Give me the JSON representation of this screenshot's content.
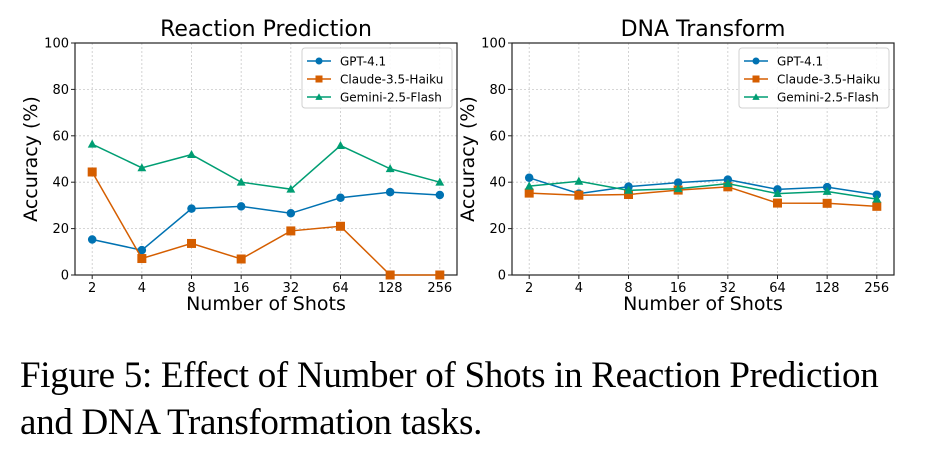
{
  "chart_data": [
    {
      "type": "line",
      "title": "Reaction Prediction",
      "xlabel": "Number of Shots",
      "ylabel": "Accuracy (%)",
      "categories": [
        "2",
        "4",
        "8",
        "16",
        "32",
        "64",
        "128",
        "256"
      ],
      "ylim": [
        0,
        100
      ],
      "yticks": [
        0,
        20,
        40,
        60,
        80,
        100
      ],
      "grid": true,
      "legend": "top-right",
      "series": [
        {
          "name": "GPT-4.1",
          "color": "#0072B2",
          "marker": "circle",
          "values": [
            15.3,
            10.7,
            28.6,
            29.6,
            26.6,
            33.3,
            35.7,
            34.5
          ]
        },
        {
          "name": "Claude-3.5-Haiku",
          "color": "#D55E00",
          "marker": "square",
          "values": [
            44.4,
            7.1,
            13.6,
            6.9,
            19.0,
            21.0,
            0.0,
            0.0
          ]
        },
        {
          "name": "Gemini-2.5-Flash",
          "color": "#009E73",
          "marker": "triangle",
          "values": [
            56.4,
            46.2,
            51.9,
            40.0,
            37.0,
            55.8,
            45.8,
            40.0
          ]
        }
      ]
    },
    {
      "type": "line",
      "title": "DNA Transform",
      "xlabel": "Number of Shots",
      "ylabel": "Accuracy (%)",
      "categories": [
        "2",
        "4",
        "8",
        "16",
        "32",
        "64",
        "128",
        "256"
      ],
      "ylim": [
        0,
        100
      ],
      "yticks": [
        0,
        20,
        40,
        60,
        80,
        100
      ],
      "grid": true,
      "legend": "top-right",
      "series": [
        {
          "name": "GPT-4.1",
          "color": "#0072B2",
          "marker": "circle",
          "values": [
            41.9,
            35.1,
            38.1,
            39.8,
            41.1,
            36.9,
            37.9,
            34.6
          ]
        },
        {
          "name": "Claude-3.5-Haiku",
          "color": "#D55E00",
          "marker": "square",
          "values": [
            35.3,
            34.4,
            34.7,
            36.6,
            38.0,
            31.0,
            30.9,
            29.6
          ]
        },
        {
          "name": "Gemini-2.5-Flash",
          "color": "#009E73",
          "marker": "triangle",
          "values": [
            38.3,
            40.4,
            36.5,
            37.2,
            39.4,
            35.1,
            36.0,
            32.7
          ]
        }
      ]
    }
  ],
  "caption": "Figure 5: Effect of Number of Shots in Reaction Prediction and DNA Transformation tasks."
}
